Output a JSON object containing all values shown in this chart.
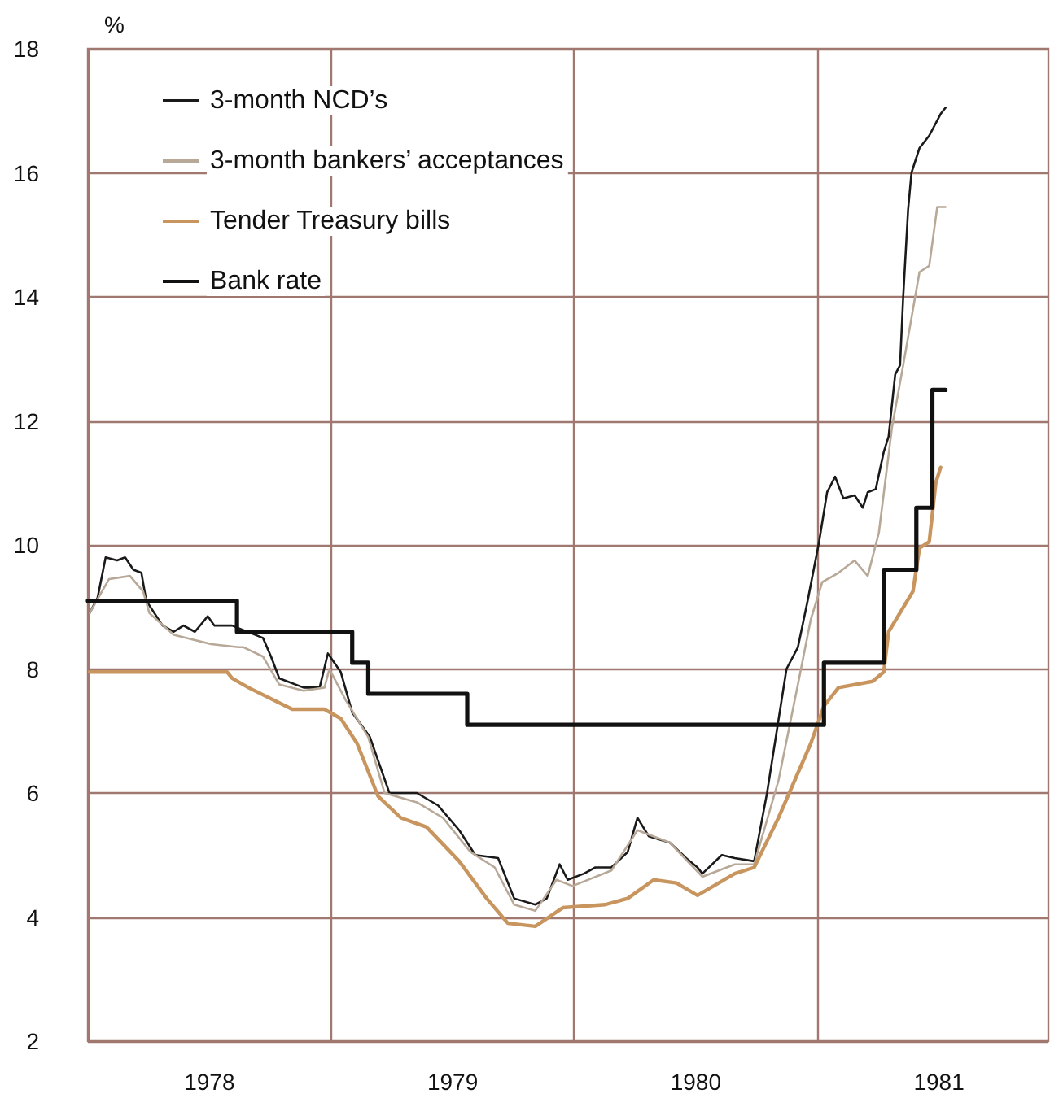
{
  "chart_data": {
    "type": "line",
    "ylabel": "%",
    "xlim": [
      1978,
      1981.95
    ],
    "ylim": [
      2,
      18
    ],
    "xticks": [
      {
        "value": 1978.5,
        "label": "1978"
      },
      {
        "value": 1979,
        "label": null
      },
      {
        "value": 1979.5,
        "label": "1979"
      },
      {
        "value": 1980,
        "label": null
      },
      {
        "value": 1980.5,
        "label": "1980"
      },
      {
        "value": 1981,
        "label": null
      },
      {
        "value": 1981.5,
        "label": "1981"
      }
    ],
    "yticks": [
      2,
      4,
      6,
      8,
      10,
      12,
      14,
      16,
      18
    ],
    "grid": true,
    "legend": "top left",
    "marker": "none",
    "line_style": "solid",
    "series": [
      {
        "name": "3-month NCD’s",
        "color": "#1a1a1a",
        "x": [
          1978.007,
          1978.04,
          1978.073,
          1978.12,
          1978.153,
          1978.187,
          1978.22,
          1978.24,
          1978.307,
          1978.353,
          1978.393,
          1978.44,
          1978.493,
          1978.52,
          1978.593,
          1978.72,
          1978.753,
          1978.787,
          1978.887,
          1978.953,
          1978.987,
          1979.04,
          1979.087,
          1979.16,
          1979.24,
          1979.353,
          1979.44,
          1979.527,
          1979.593,
          1979.687,
          1979.753,
          1979.84,
          1979.887,
          1979.94,
          1979.973,
          1980.04,
          1980.087,
          1980.153,
          1980.22,
          1980.26,
          1980.307,
          1980.393,
          1980.46,
          1980.507,
          1980.527,
          1980.607,
          1980.66,
          1980.74,
          1980.793,
          1980.873,
          1980.92,
          1980.96,
          1981.007,
          1981.04,
          1981.073,
          1981.107,
          1981.153,
          1981.187,
          1981.207,
          1981.24,
          1981.273,
          1981.293,
          1981.32,
          1981.34,
          1981.353,
          1981.373,
          1981.387,
          1981.42,
          1981.46,
          1981.507,
          1981.527
        ],
        "values": [
          8.9,
          9.15,
          9.8,
          9.75,
          9.8,
          9.6,
          9.55,
          9.1,
          8.7,
          8.6,
          8.7,
          8.6,
          8.85,
          8.7,
          8.7,
          8.5,
          8.2,
          7.85,
          7.7,
          7.7,
          8.25,
          7.95,
          7.3,
          6.9,
          6.0,
          6.0,
          5.8,
          5.4,
          5.0,
          4.95,
          4.3,
          4.2,
          4.3,
          4.85,
          4.6,
          4.7,
          4.8,
          4.8,
          5.05,
          5.6,
          5.3,
          5.2,
          4.95,
          4.8,
          4.7,
          5.0,
          4.95,
          4.9,
          6.0,
          8.0,
          8.35,
          9.1,
          10.05,
          10.85,
          11.1,
          10.75,
          10.8,
          10.6,
          10.85,
          10.9,
          11.5,
          11.75,
          12.75,
          12.9,
          14.0,
          15.4,
          16.0,
          16.4,
          16.6,
          16.95,
          17.05
        ]
      },
      {
        "name": "3-month bankers’ acceptances",
        "color": "#b8a898",
        "x": [
          1978.007,
          1978.087,
          1978.173,
          1978.227,
          1978.253,
          1978.353,
          1978.507,
          1978.62,
          1978.64,
          1978.72,
          1978.787,
          1978.887,
          1978.973,
          1978.993,
          1979.06,
          1979.153,
          1979.22,
          1979.353,
          1979.46,
          1979.573,
          1979.673,
          1979.753,
          1979.84,
          1979.927,
          1979.993,
          1980.153,
          1980.26,
          1980.393,
          1980.527,
          1980.66,
          1980.74,
          1980.84,
          1980.92,
          1980.973,
          1981.02,
          1981.087,
          1981.153,
          1981.207,
          1981.253,
          1981.307,
          1981.353,
          1981.42,
          1981.46,
          1981.493,
          1981.527
        ],
        "values": [
          8.9,
          9.45,
          9.5,
          9.25,
          8.9,
          8.55,
          8.4,
          8.35,
          8.35,
          8.2,
          7.75,
          7.65,
          7.7,
          8.0,
          7.5,
          6.9,
          6.0,
          5.85,
          5.6,
          5.05,
          4.8,
          4.2,
          4.1,
          4.6,
          4.5,
          4.75,
          5.4,
          5.2,
          4.65,
          4.85,
          4.85,
          6.2,
          7.75,
          8.8,
          9.4,
          9.55,
          9.75,
          9.5,
          10.2,
          11.9,
          12.9,
          14.4,
          14.5,
          15.45,
          15.45
        ]
      },
      {
        "name": "Tender Treasury bills",
        "color": "#c8955f",
        "x": [
          1978.007,
          1978.573,
          1978.593,
          1978.66,
          1978.84,
          1978.973,
          1979.04,
          1979.107,
          1979.193,
          1979.287,
          1979.393,
          1979.527,
          1979.64,
          1979.727,
          1979.84,
          1979.953,
          1980.127,
          1980.22,
          1980.327,
          1980.42,
          1980.507,
          1980.66,
          1980.74,
          1980.84,
          1980.973,
          1981.027,
          1981.087,
          1981.227,
          1981.273,
          1981.293,
          1981.393,
          1981.42,
          1981.46,
          1981.487,
          1981.507
        ],
        "values": [
          7.95,
          7.95,
          7.85,
          7.7,
          7.35,
          7.35,
          7.2,
          6.8,
          5.95,
          5.6,
          5.45,
          4.9,
          4.3,
          3.9,
          3.85,
          4.15,
          4.2,
          4.3,
          4.6,
          4.55,
          4.35,
          4.7,
          4.8,
          5.6,
          6.8,
          7.4,
          7.7,
          7.8,
          7.95,
          8.6,
          9.25,
          9.95,
          10.05,
          11.0,
          11.25
        ]
      },
      {
        "name": "Bank rate",
        "type": "step",
        "color": "#111111",
        "x": [
          1978.0,
          1978.613,
          1979.087,
          1979.153,
          1979.56,
          1981.027,
          1981.273,
          1981.407,
          1981.473,
          1981.527
        ],
        "values": [
          9.1,
          8.6,
          8.1,
          7.6,
          7.1,
          8.1,
          9.6,
          10.6,
          12.5,
          12.5
        ]
      }
    ]
  }
}
